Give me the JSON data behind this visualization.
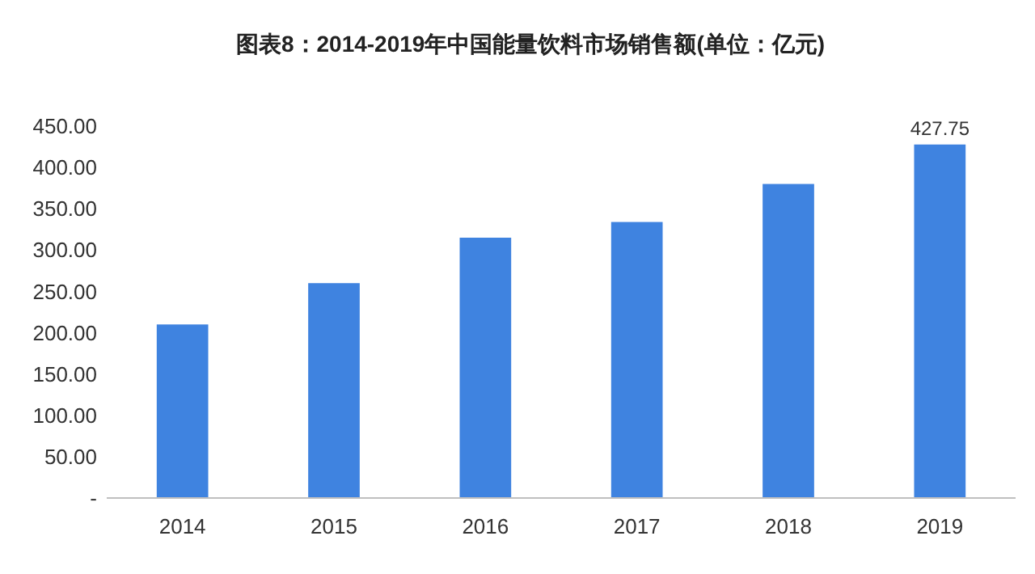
{
  "chart_data": {
    "type": "bar",
    "title": "图表8：2014-2019年中国能量饮料市场销售额(单位：亿元)",
    "categories": [
      "2014",
      "2015",
      "2016",
      "2017",
      "2018",
      "2019"
    ],
    "values": [
      210,
      260,
      315,
      334,
      380,
      427.75
    ],
    "value_labels": [
      null,
      null,
      null,
      null,
      null,
      "427.75"
    ],
    "color": "#3f83e0",
    "ylim": [
      0,
      450
    ],
    "yticks": [
      {
        "value": 0,
        "label": "-"
      },
      {
        "value": 50,
        "label": "50.00"
      },
      {
        "value": 100,
        "label": "100.00"
      },
      {
        "value": 150,
        "label": "150.00"
      },
      {
        "value": 200,
        "label": "200.00"
      },
      {
        "value": 250,
        "label": "250.00"
      },
      {
        "value": 300,
        "label": "300.00"
      },
      {
        "value": 350,
        "label": "350.00"
      },
      {
        "value": 400,
        "label": "400.00"
      },
      {
        "value": 450,
        "label": "450.00"
      }
    ],
    "grid": false
  }
}
